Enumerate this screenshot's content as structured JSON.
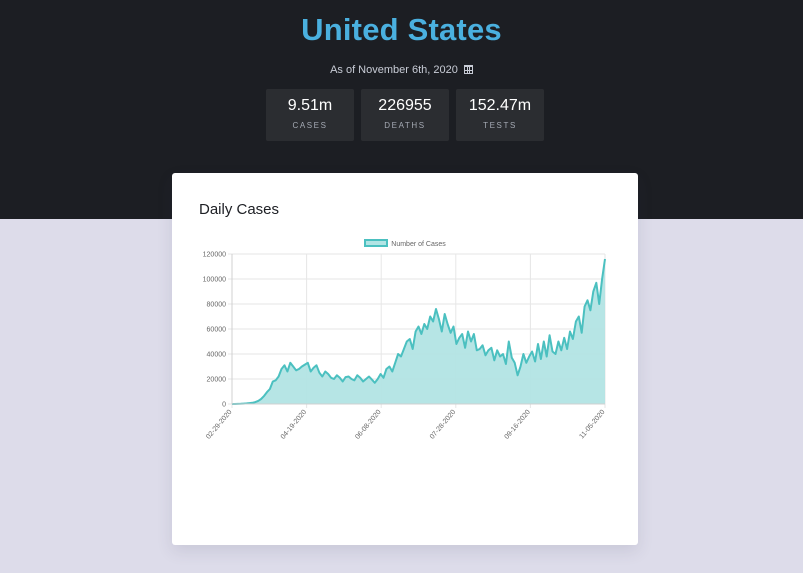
{
  "header": {
    "title": "United States",
    "as_of": "As of November 6th, 2020",
    "calendar_icon": "calendar-icon"
  },
  "stats": [
    {
      "value": "9.51m",
      "label": "CASES"
    },
    {
      "value": "226955",
      "label": "DEATHS"
    },
    {
      "value": "152.47m",
      "label": "TESTS"
    }
  ],
  "card": {
    "title": "Daily Cases"
  },
  "colors": {
    "hero_bg": "#1c1e23",
    "page_bg": "#dddcea",
    "title": "#4ab0df",
    "stat_bg": "#2b2d31",
    "line": "#4bc0c0",
    "fill": "#b2e4e4"
  },
  "chart_data": {
    "type": "area",
    "title": "Daily Cases",
    "legend": [
      "Number of Cases"
    ],
    "legend_position": "top",
    "xlabel": "",
    "ylabel": "",
    "ylim": [
      0,
      120000
    ],
    "yticks": [
      0,
      20000,
      40000,
      60000,
      80000,
      100000,
      120000
    ],
    "xticks": [
      "02-29-2020",
      "04-19-2020",
      "06-08-2020",
      "07-28-2020",
      "09-16-2020",
      "11-05-2020"
    ],
    "grid": true,
    "x_start": "02-29-2020",
    "x_end": "11-05-2020",
    "sample_interval_days": 2,
    "series": [
      {
        "name": "Number of Cases",
        "values": [
          0,
          0,
          100,
          200,
          300,
          500,
          700,
          1000,
          1500,
          2500,
          4000,
          6500,
          9500,
          12000,
          18000,
          19000,
          22000,
          28000,
          31000,
          26000,
          33000,
          30000,
          27000,
          28000,
          30000,
          31500,
          33000,
          26000,
          29000,
          31000,
          25000,
          22000,
          26000,
          24000,
          21000,
          20000,
          23000,
          21000,
          18000,
          21500,
          22000,
          20000,
          19000,
          23000,
          21000,
          18000,
          20000,
          22000,
          19500,
          17000,
          20000,
          24000,
          21000,
          28000,
          30000,
          26000,
          33000,
          40000,
          38000,
          44000,
          50000,
          52000,
          44000,
          58000,
          62000,
          56000,
          64000,
          60000,
          70000,
          66000,
          76000,
          68000,
          58000,
          72000,
          64000,
          57000,
          62000,
          48000,
          53000,
          56000,
          45000,
          58000,
          50000,
          56000,
          43000,
          44000,
          47000,
          39000,
          43000,
          45000,
          35000,
          43000,
          38000,
          40000,
          32000,
          50000,
          37000,
          33000,
          23000,
          30000,
          40000,
          33000,
          38000,
          42000,
          34000,
          48000,
          36000,
          50000,
          38000,
          55000,
          42000,
          40000,
          50000,
          43000,
          53000,
          44000,
          58000,
          52000,
          66000,
          70000,
          57000,
          78000,
          83000,
          75000,
          90000,
          97000,
          80000,
          100000,
          116000
        ]
      }
    ]
  }
}
